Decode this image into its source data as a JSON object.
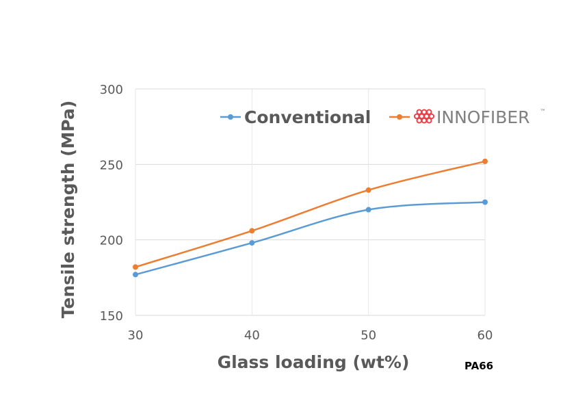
{
  "chart_data": {
    "type": "line",
    "x": [
      30,
      40,
      50,
      60
    ],
    "x_ticks": [
      "30",
      "40",
      "50",
      "60"
    ],
    "y_ticks": [
      "150",
      "200",
      "250",
      "300"
    ],
    "xlim": [
      30,
      60
    ],
    "ylim": [
      150,
      300
    ],
    "xlabel": "Glass loading (wt%)",
    "ylabel": "Tensile strength (MPa)",
    "grid": "horizontal",
    "legend_position": "top",
    "smoothed": true,
    "series": [
      {
        "name": "Conventional",
        "color": "#5b9bd5",
        "values": [
          177,
          198,
          220,
          225
        ]
      },
      {
        "name": "INNOFIBER",
        "trademark": "™",
        "color": "#ed7d31",
        "logo_icon": "red-dots-logo-icon",
        "logo_color": "#e8424a",
        "values": [
          182,
          206,
          233,
          252
        ]
      }
    ],
    "annotation": "PA66"
  }
}
